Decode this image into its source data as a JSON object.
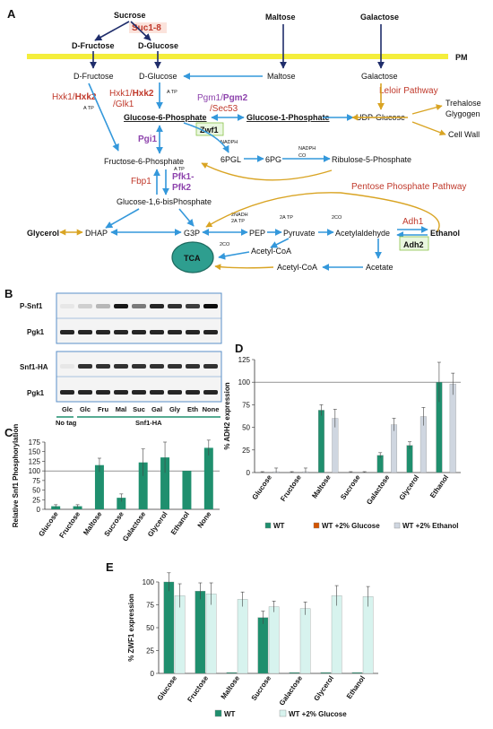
{
  "colors": {
    "membrane": "#f4ee3c",
    "arrow_blue": "#3498db",
    "arrow_navy": "#1f2d6b",
    "arrow_gold": "#d9a423",
    "enzyme_red": "#c0392b",
    "enzyme_purple": "#8e44ad",
    "enzyme_green": "#1e7d4f",
    "tca_fill": "#2e9e8f",
    "wt_dark": "#1f8f6e",
    "wt_orange": "#d35400",
    "wt_light": "#cfd6e0",
    "wt_glucose_light": "#d7f3ee"
  },
  "panelA": {
    "label": "A",
    "pm_label": "PM",
    "sugars": {
      "sucrose": "Sucrose",
      "maltose": "Maltose",
      "galactose": "Galactose"
    },
    "suc18": "Suc1-8",
    "d_fructose_top": "D-Fructose",
    "d_glucose_top": "D-Glucose",
    "d_fructose": "D-Fructose",
    "d_glucose": "D-Glucose",
    "maltose_in": "Maltose",
    "galactose_in": "Galactose",
    "leloir": "Leloir Pathway",
    "trehalose": "Trehalose",
    "glycogen": "Glygogen",
    "cell_wall": "Cell Wall",
    "hxk_a": "Hxk1/",
    "hxk_b": "Hxk2",
    "hxk2_a": "Hxk1/",
    "hxk2_b": "Hxk2",
    "glk1": "/Glk1",
    "pgm_a": "Pgm1/",
    "pgm_b": "Pgm2",
    "sec53": "/Sec53",
    "g6p": "Glucose-6-Phosphate",
    "g1p": "Glucose-1-Phosphate",
    "udp_glucose": "UDP-Glucose",
    "pgi1": "Pgi1",
    "zwf1": "Zwf1",
    "nadph": "NADPH",
    "nadph2": "NADPH",
    "co2_small": "CO",
    "f6p": "Fructose-6-Phosphate",
    "sixpgl": "6PGL",
    "sixpg": "6PG",
    "ribulose": "Ribulose-5-Phosphate",
    "fbp1": "Fbp1",
    "pfk_a": "Pfk1-",
    "pfk_b": "Pfk2",
    "f16bp": "Glucose-1,6-bisPhosphate",
    "ppp": "Pentose Phosphate Pathway",
    "atp": "A TP",
    "twonadh": "2NADH",
    "twoatp": "2A TP",
    "twoatp2": "2A TP",
    "twoco2": "2CO",
    "twoco2b": "2CO",
    "glycerol": "Glycerol",
    "dhap": "DHAP",
    "g3p": "G3P",
    "pep": "PEP",
    "pyruvate": "Pyruvate",
    "acetylaldehyde": "Acetylaldehyde",
    "ethanol": "Ethanol",
    "adh1": "Adh1",
    "adh2": "Adh2",
    "acetyl_coa": "Acetyl-CoA",
    "acetyl_coa2": "Acetyl-CoA",
    "acetate": "Acetate",
    "tca": "TCA"
  },
  "panelB": {
    "label": "B",
    "rows": [
      "P-Snf1",
      "Pgk1",
      "Snf1-HA",
      "Pgk1"
    ],
    "lanes": [
      "Glc",
      "Glc",
      "Fru",
      "Mal",
      "Suc",
      "Gal",
      "Gly",
      "Eth",
      "None"
    ],
    "group_notag": "No tag",
    "group_snf1": "Snf1-HA"
  },
  "chart_data": [
    {
      "panel": "C",
      "type": "bar",
      "ylabel": "Relative Snf1 Phosphorylation",
      "ylim": [
        0,
        175
      ],
      "yticks": [
        0,
        25,
        50,
        75,
        100,
        125,
        150,
        175
      ],
      "reference_line": 100,
      "categories": [
        "Glucose",
        "Fructose",
        "Maltose",
        "Sucrose",
        "Galactose",
        "Glycerol",
        "Ethanol",
        "None"
      ],
      "values": [
        8,
        8,
        115,
        30,
        122,
        135,
        100,
        160
      ],
      "errors": [
        4,
        4,
        18,
        10,
        35,
        40,
        0,
        20
      ]
    },
    {
      "panel": "D",
      "type": "bar",
      "ylabel": "% ADH2 expression",
      "ylim": [
        0,
        125
      ],
      "yticks": [
        0,
        25,
        50,
        75,
        100,
        125
      ],
      "reference_line": 100,
      "categories": [
        "Glucose",
        "Fructose",
        "Maltose",
        "Sucrose",
        "Galactose",
        "Glycerol",
        "Ethanol"
      ],
      "series": [
        {
          "name": "WT",
          "values": [
            0,
            0,
            69,
            0,
            19,
            30,
            100
          ],
          "errors": [
            1,
            1,
            6,
            1,
            3,
            4,
            22
          ]
        },
        {
          "name": "WT +2% Glucose",
          "values": [
            0,
            0,
            0,
            0,
            0,
            0,
            0
          ],
          "errors": [
            0,
            0,
            0,
            0,
            0,
            0,
            0
          ]
        },
        {
          "name": "WT +2% Ethanol",
          "values": [
            1,
            1,
            60,
            0,
            53,
            62,
            98
          ],
          "errors": [
            4,
            4,
            10,
            1,
            7,
            10,
            12
          ]
        }
      ]
    },
    {
      "panel": "E",
      "type": "bar",
      "ylabel": "% ZWF1 expression",
      "ylim": [
        0,
        100
      ],
      "yticks": [
        0,
        25,
        50,
        75,
        100
      ],
      "categories": [
        "Glucose",
        "Fructose",
        "Maltose",
        "Sucrose",
        "Galactose",
        "Glycerol",
        "Ethanol"
      ],
      "series": [
        {
          "name": "WT",
          "values": [
            100,
            90,
            1,
            61,
            1,
            1,
            1
          ],
          "errors": [
            10,
            9,
            0,
            7,
            0,
            0,
            0
          ]
        },
        {
          "name": "WT +2% Glucose",
          "values": [
            85,
            87,
            81,
            73,
            71,
            85,
            84
          ],
          "errors": [
            13,
            12,
            8,
            6,
            7,
            11,
            11
          ]
        }
      ]
    }
  ]
}
